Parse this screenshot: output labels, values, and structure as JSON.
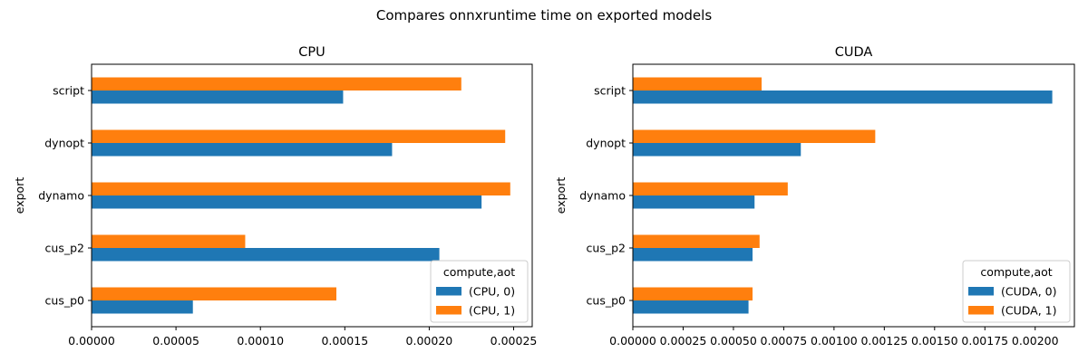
{
  "figure": {
    "suptitle": "Compares onnxruntime time on exported models"
  },
  "colors": {
    "series0": "#1f77b4",
    "series1": "#ff7f0e"
  },
  "chart_data": [
    {
      "type": "bar",
      "orientation": "horizontal",
      "title": "CPU",
      "ylabel": "export",
      "xlabel": "",
      "categories": [
        "cus_p0",
        "cus_p2",
        "dynamo",
        "dynopt",
        "script"
      ],
      "series": [
        {
          "name": "(CPU, 0)",
          "values": [
            6e-05,
            0.000206,
            0.000231,
            0.000178,
            0.000149
          ]
        },
        {
          "name": "(CPU, 1)",
          "values": [
            0.000145,
            9.1e-05,
            0.000248,
            0.000245,
            0.000219
          ]
        }
      ],
      "xlim": [
        0,
        0.000261
      ],
      "xticks": [
        0,
        5e-05,
        0.0001,
        0.00015,
        0.0002,
        0.00025
      ],
      "xtick_labels": [
        "0.00000",
        "0.00005",
        "0.00010",
        "0.00015",
        "0.00020",
        "0.00025"
      ],
      "legend": {
        "title": "compute,aot",
        "placement": "lower-right"
      },
      "grid": false
    },
    {
      "type": "bar",
      "orientation": "horizontal",
      "title": "CUDA",
      "ylabel": "export",
      "xlabel": "",
      "categories": [
        "cus_p0",
        "cus_p2",
        "dynamo",
        "dynopt",
        "script"
      ],
      "series": [
        {
          "name": "(CUDA, 0)",
          "values": [
            0.000575,
            0.000595,
            0.000605,
            0.000835,
            0.002085
          ]
        },
        {
          "name": "(CUDA, 1)",
          "values": [
            0.000595,
            0.00063,
            0.00077,
            0.001205,
            0.00064
          ]
        }
      ],
      "xlim": [
        0,
        0.002195
      ],
      "xticks": [
        0,
        0.00025,
        0.0005,
        0.00075,
        0.001,
        0.00125,
        0.0015,
        0.00175,
        0.002
      ],
      "xtick_labels": [
        "0.00000",
        "0.00025",
        "0.00050",
        "0.00075",
        "0.00100",
        "0.00125",
        "0.00150",
        "0.00175",
        "0.00200"
      ],
      "legend": {
        "title": "compute,aot",
        "placement": "lower-right"
      },
      "grid": false
    }
  ]
}
